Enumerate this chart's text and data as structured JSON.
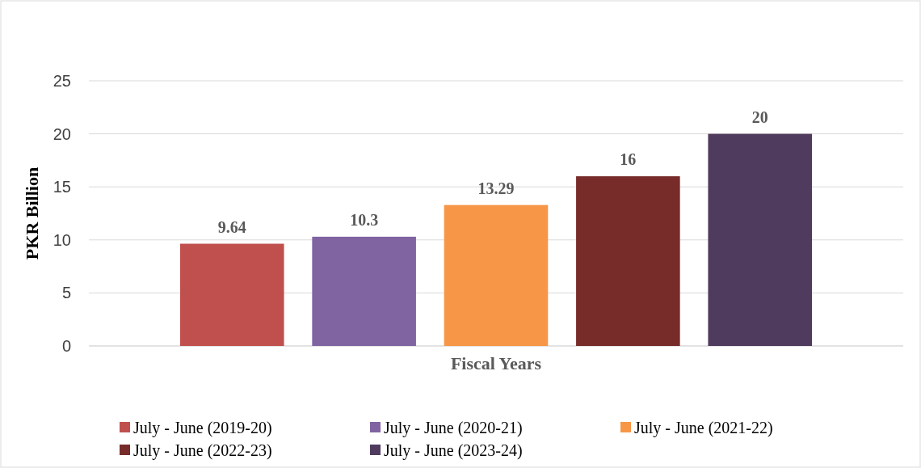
{
  "chart_data": {
    "type": "bar",
    "xlabel": "Fiscal Years",
    "ylabel": "PKR Billion",
    "categories": [
      null
    ],
    "series": [
      {
        "name": "July - June (2019-20)",
        "color": "#c0504d",
        "values": [
          9.64
        ]
      },
      {
        "name": "July - June (2020-21)",
        "color": "#8064a2",
        "values": [
          10.3
        ]
      },
      {
        "name": "July - June (2021-22)",
        "color": "#f79646",
        "values": [
          13.29
        ]
      },
      {
        "name": "July - June (2022-23)",
        "color": "#772c2a",
        "values": [
          16
        ]
      },
      {
        "name": "July - June (2023-24)",
        "color": "#4f3b5e",
        "values": [
          20
        ]
      }
    ],
    "ylim": [
      0,
      25
    ],
    "yticks": [
      0,
      5,
      10,
      15,
      20,
      25
    ],
    "grid": "y",
    "data_labels": true,
    "legend": "bottom"
  }
}
